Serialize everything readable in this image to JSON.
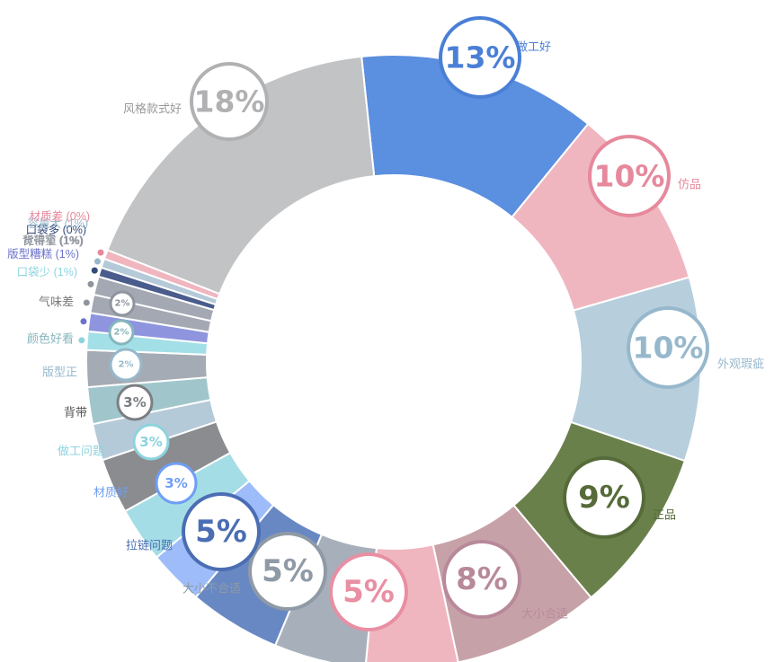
{
  "chart_data": {
    "type": "pie",
    "title": "",
    "series": [
      {
        "name": "做工好",
        "value": 13,
        "label": "13%",
        "color": "#5b8fdf"
      },
      {
        "name": "仿品",
        "value": 10,
        "label": "10%",
        "color": "#f0b6c0"
      },
      {
        "name": "外观瑕疵",
        "value": 10,
        "label": "10%",
        "color": "#b7cedd"
      },
      {
        "name": "正品",
        "value": 9,
        "label": "9%",
        "color": "#6a804b"
      },
      {
        "name": "大小合适",
        "value": 8,
        "label": "8%",
        "color": "#c6a2a8"
      },
      {
        "name": "",
        "value": 5,
        "label": "5%",
        "color": "#f0b6c0"
      },
      {
        "name": "大小不合适",
        "value": 5,
        "label": "5%",
        "color": "#a7b0ba"
      },
      {
        "name": "拉链问题",
        "value": 5,
        "label": "5%",
        "color": "#6888c3"
      },
      {
        "name": "材质好",
        "value": 3,
        "label": "3%",
        "color": "#9dbcf9"
      },
      {
        "name": "做工问题",
        "value": 3,
        "label": "3%",
        "color": "#a5dde6"
      },
      {
        "name": "背带",
        "value": 3,
        "label": "3%",
        "color": "#8a8c8f"
      },
      {
        "name": "版型正",
        "value": 2,
        "label": "2%",
        "color": "#b5cad8"
      },
      {
        "name": "颜色好看",
        "value": 2,
        "label": "2%",
        "color": "#a0c6cc"
      },
      {
        "name": "气味差",
        "value": 2,
        "label": "2%",
        "color": "#a5abb4"
      },
      {
        "name": "口袋少",
        "value": 1,
        "label": "(1%)",
        "color": "#a3dfe6"
      },
      {
        "name": "版型糟糕",
        "value": 1,
        "label": "(1%)",
        "color": "#8e95de"
      },
      {
        "name": "背带窄",
        "value": 1,
        "label": "(1%)",
        "color": "#a3a8b2"
      },
      {
        "name": "觉得重",
        "value": 1,
        "label": "(1%)",
        "color": "#a3a8b2"
      },
      {
        "name": "口袋多",
        "value": 0.5,
        "label": "(0%)",
        "color": "#4a5c8c"
      },
      {
        "name": "容量大",
        "value": 0.5,
        "label": "(1%)",
        "color": "#b5cad8"
      },
      {
        "name": "材质差",
        "value": 0.5,
        "label": "(0%)",
        "color": "#f0b6c0"
      },
      {
        "name": "风格款式好",
        "value": 18,
        "label": "18%",
        "color": "#c2c3c5"
      }
    ]
  }
}
